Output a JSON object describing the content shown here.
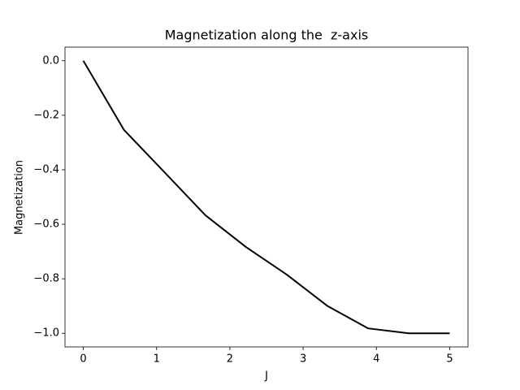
{
  "chart_data": {
    "type": "line",
    "title": "Magnetization along the  z-axis",
    "x_label": "J",
    "y_label": "Magnetization",
    "x": [
      0,
      0.5556,
      1.1111,
      1.6667,
      2.2222,
      2.7778,
      3.3333,
      3.8889,
      4.4444,
      5
    ],
    "series": [
      {
        "name": "Magnetization",
        "color": "#000000",
        "values": [
          0,
          -0.254,
          -0.41,
          -0.567,
          -0.684,
          -0.785,
          -0.9,
          -0.982,
          -1.0,
          -1.0
        ]
      }
    ],
    "xlim": [
      -0.25,
      5.25
    ],
    "ylim": [
      -1.05,
      0.05
    ],
    "xticks": [
      0,
      1,
      2,
      3,
      4,
      5
    ],
    "yticks": [
      {
        "value": 0,
        "label": "0.0"
      },
      {
        "value": -0.2,
        "label": "−0.2"
      },
      {
        "value": -0.4,
        "label": "−0.4"
      },
      {
        "value": -0.6,
        "label": "−0.6"
      },
      {
        "value": -0.8,
        "label": "−0.8"
      },
      {
        "value": -1.0,
        "label": "−1.0"
      }
    ],
    "grid": false
  }
}
